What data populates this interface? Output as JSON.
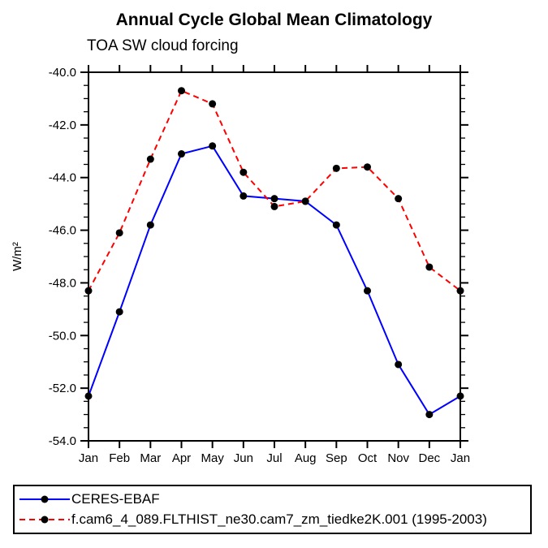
{
  "header": {
    "title": "Annual Cycle Global Mean Climatology",
    "subtitle": "TOA SW cloud forcing"
  },
  "colors": {
    "axis": "#000000",
    "background": "#ffffff",
    "series_obs": "#0000ff",
    "series_model": "#ff0000",
    "marker": "#000000"
  },
  "chart_data": {
    "type": "line",
    "title": "Annual Cycle Global Mean Climatology",
    "subtitle": "TOA SW cloud forcing",
    "xlabel": "",
    "ylabel": "W/m²",
    "categories": [
      "Jan",
      "Feb",
      "Mar",
      "Apr",
      "May",
      "Jun",
      "Jul",
      "Aug",
      "Sep",
      "Oct",
      "Nov",
      "Dec",
      "Jan"
    ],
    "ylim": [
      -54.0,
      -40.0
    ],
    "y_major_ticks": [
      -40,
      -42,
      -44,
      -46,
      -48,
      -50,
      -52,
      -54
    ],
    "y_tick_labels": [
      "-40.0",
      "-42.0",
      "-44.0",
      "-46.0",
      "-48.0",
      "-50.0",
      "-52.0",
      "-54.0"
    ],
    "y_minor_step": 0.5,
    "grid": false,
    "legend_position": "bottom-left-box",
    "series": [
      {
        "name": "CERES-EBAF",
        "color": "#0000ff",
        "style": "solid",
        "marker": "circle",
        "marker_color": "#000000",
        "values": [
          -52.3,
          -49.1,
          -45.8,
          -43.1,
          -42.8,
          -44.7,
          -44.8,
          -44.9,
          -45.8,
          -48.3,
          -51.1,
          -53.0,
          -52.3
        ]
      },
      {
        "name": "f.cam6_4_089.FLTHIST_ne30.cam7_zm_tiedke2K.001 (1995-2003)",
        "color": "#ff0000",
        "style": "dashed",
        "marker": "circle",
        "marker_color": "#000000",
        "values": [
          -48.3,
          -46.1,
          -43.3,
          -40.7,
          -41.2,
          -43.8,
          -45.1,
          -44.9,
          -43.65,
          -43.6,
          -44.8,
          -47.4,
          -48.3
        ]
      }
    ]
  }
}
